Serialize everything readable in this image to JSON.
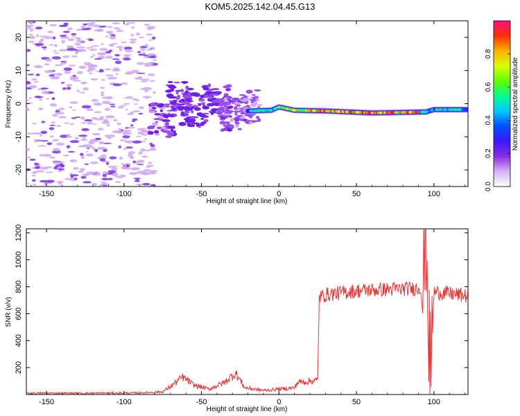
{
  "page": {
    "title": "KOM5.2025.142.04.45.G13"
  },
  "colors": {
    "snr_line": "#ee3333",
    "spectrogram_faint": "#cfa8f2",
    "spectrogram_mid": "#7a30ee",
    "colormap": [
      "#ffffff",
      "#d4b2f4",
      "#8a2be2",
      "#3b18ff",
      "#0050ff",
      "#00c8ff",
      "#00ff90",
      "#60ff00",
      "#d8ff00",
      "#ffb000",
      "#ff3000",
      "#ff1080"
    ]
  },
  "chart_data": [
    {
      "id": "spectrogram",
      "type": "heatmap",
      "title": "KOM5.2025.142.04.45.G13",
      "xlabel": "Height of straight line (km)",
      "ylabel": "Frequency (Hz)",
      "xlim": [
        -163,
        122
      ],
      "ylim": [
        -25,
        25
      ],
      "xticks": [
        -150,
        -100,
        -50,
        0,
        50,
        100
      ],
      "yticks": [
        -20,
        -10,
        0,
        10,
        20
      ],
      "colorbar": {
        "label": "Normalized spectral amplitude",
        "range": [
          0,
          1
        ],
        "ticks": [
          "0.0",
          "0.2",
          "0.4",
          "0.6",
          "0.8"
        ]
      },
      "ridge": {
        "description_points": [
          [
            -20,
            -2.2
          ],
          [
            -5,
            -2.0
          ],
          [
            0,
            -1.0
          ],
          [
            10,
            -2.0
          ],
          [
            30,
            -2.2
          ],
          [
            60,
            -2.8
          ],
          [
            95,
            -2.5
          ],
          [
            100,
            -1.8
          ],
          [
            122,
            -1.8
          ]
        ]
      },
      "clusters": [
        {
          "x": -75,
          "y": -5,
          "amp": 0.25
        },
        {
          "x": -65,
          "y": 2,
          "amp": 0.3
        },
        {
          "x": -55,
          "y": -2,
          "amp": 0.3
        },
        {
          "x": -40,
          "y": 1,
          "amp": 0.28
        },
        {
          "x": -30,
          "y": -3,
          "amp": 0.25
        },
        {
          "x": -20,
          "y": -1,
          "amp": 0.2
        }
      ]
    },
    {
      "id": "snr",
      "type": "line",
      "xlabel": "Height of straight line (km)",
      "ylabel": "SNR (v/v)",
      "xlim": [
        -163,
        122
      ],
      "ylim": [
        0,
        1230
      ],
      "xticks": [
        -150,
        -100,
        -50,
        0,
        50,
        100
      ],
      "yticks": [
        200,
        400,
        600,
        800,
        1000,
        1200
      ],
      "series": [
        {
          "values_profile": [
            [
              -163,
              10
            ],
            [
              -120,
              10
            ],
            [
              -90,
              12
            ],
            [
              -75,
              20
            ],
            [
              -70,
              60
            ],
            [
              -62,
              130
            ],
            [
              -55,
              70
            ],
            [
              -45,
              40
            ],
            [
              -35,
              90
            ],
            [
              -28,
              160
            ],
            [
              -22,
              50
            ],
            [
              -10,
              30
            ],
            [
              0,
              40
            ],
            [
              10,
              50
            ],
            [
              12,
              90
            ],
            [
              25,
              105
            ],
            [
              26,
              720
            ],
            [
              30,
              740
            ],
            [
              50,
              770
            ],
            [
              70,
              780
            ],
            [
              85,
              785
            ],
            [
              93,
              790
            ],
            [
              95,
              1230
            ],
            [
              97,
              300
            ],
            [
              98,
              130
            ],
            [
              100,
              760
            ],
            [
              110,
              750
            ],
            [
              122,
              730
            ]
          ]
        }
      ]
    }
  ]
}
